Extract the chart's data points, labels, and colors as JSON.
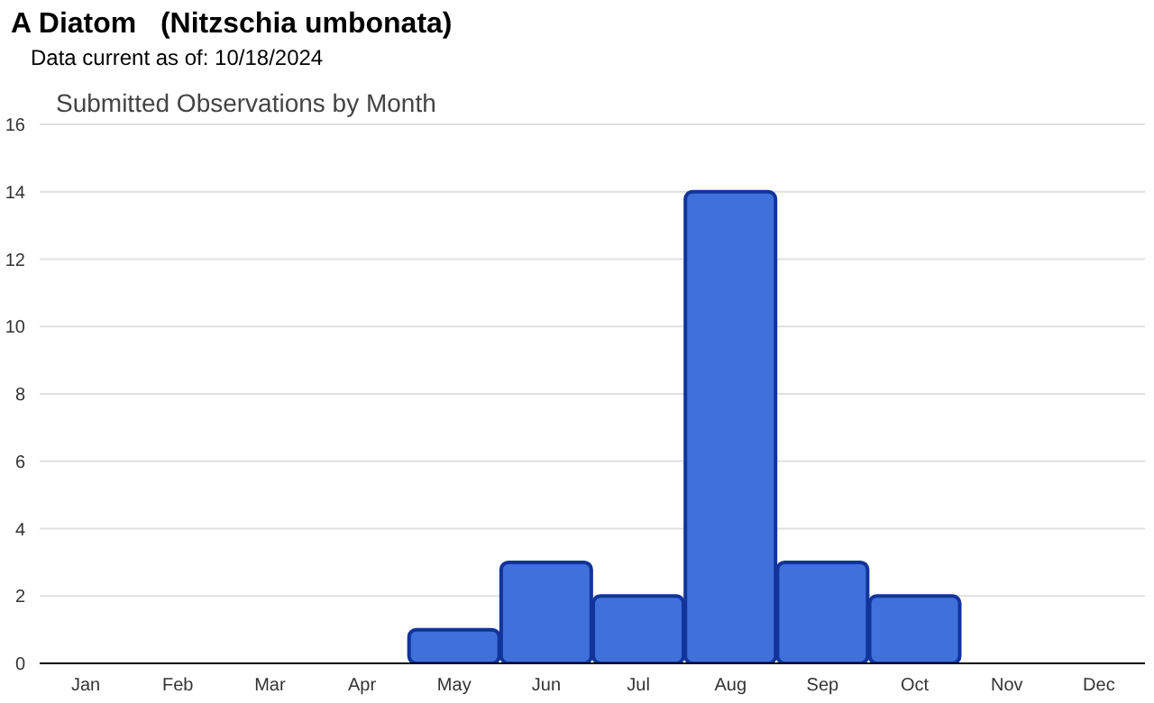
{
  "chart_data": {
    "type": "bar",
    "title": "A Diatom   (Nitzschia umbonata)",
    "subtitle": "Data current as of: 10/18/2024",
    "annotations": [
      "Submitted Observations by Month"
    ],
    "categories": [
      "Jan",
      "Feb",
      "Mar",
      "Apr",
      "May",
      "Jun",
      "Jul",
      "Aug",
      "Sep",
      "Oct",
      "Nov",
      "Dec"
    ],
    "values": [
      0,
      0,
      0,
      0,
      1,
      3,
      2,
      14,
      3,
      2,
      0,
      0
    ],
    "color": "#3f70dc",
    "ylim": [
      0,
      16
    ],
    "yticks": [
      0,
      2,
      4,
      6,
      8,
      10,
      12,
      14,
      16
    ],
    "grid": "y",
    "legend": false
  }
}
